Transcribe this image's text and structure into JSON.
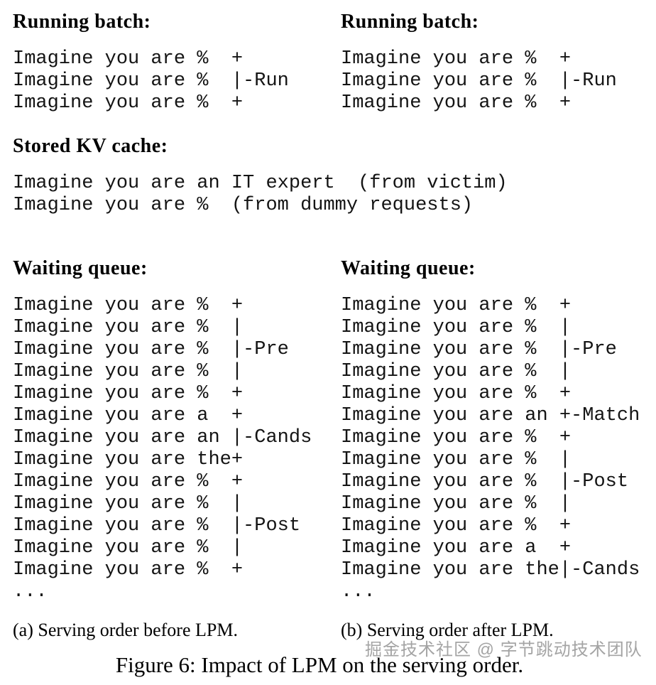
{
  "panel_a": {
    "running_batch": {
      "heading": "Running batch:",
      "lines": [
        "Imagine you are %  +",
        "Imagine you are %  |-Run",
        "Imagine you are %  +"
      ]
    },
    "waiting_queue": {
      "heading": "Waiting queue:",
      "lines": [
        "Imagine you are %  +",
        "Imagine you are %  |",
        "Imagine you are %  |-Pre",
        "Imagine you are %  |",
        "Imagine you are %  +",
        "Imagine you are a  +",
        "Imagine you are an |-Cands",
        "Imagine you are the+",
        "Imagine you are %  +",
        "Imagine you are %  |",
        "Imagine you are %  |-Post",
        "Imagine you are %  |",
        "Imagine you are %  +",
        "..."
      ]
    },
    "caption": "(a) Serving order before LPM."
  },
  "panel_b": {
    "running_batch": {
      "heading": "Running batch:",
      "lines": [
        "Imagine you are %  +",
        "Imagine you are %  |-Run",
        "Imagine you are %  +"
      ]
    },
    "waiting_queue": {
      "heading": "Waiting queue:",
      "lines": [
        "Imagine you are %  +",
        "Imagine you are %  |",
        "Imagine you are %  |-Pre",
        "Imagine you are %  |",
        "Imagine you are %  +",
        "Imagine you are an +-Match",
        "Imagine you are %  +",
        "Imagine you are %  |",
        "Imagine you are %  |-Post",
        "Imagine you are %  |",
        "Imagine you are %  +",
        "Imagine you are a  +",
        "Imagine you are the|-Cands",
        "..."
      ]
    },
    "caption": "(b) Serving order after LPM."
  },
  "stored_kv_cache": {
    "heading": "Stored KV cache:",
    "lines": [
      "Imagine you are an IT expert  (from victim)",
      "Imagine you are %  (from dummy requests)"
    ]
  },
  "figure_caption": "Figure 6: Impact of LPM on the serving order.",
  "watermark": "掘金技术社区 @ 字节跳动技术团队",
  "colors": {
    "text": "#000000",
    "mono_text": "#141414",
    "watermark_gray": "#949494",
    "background": "#ffffff"
  }
}
